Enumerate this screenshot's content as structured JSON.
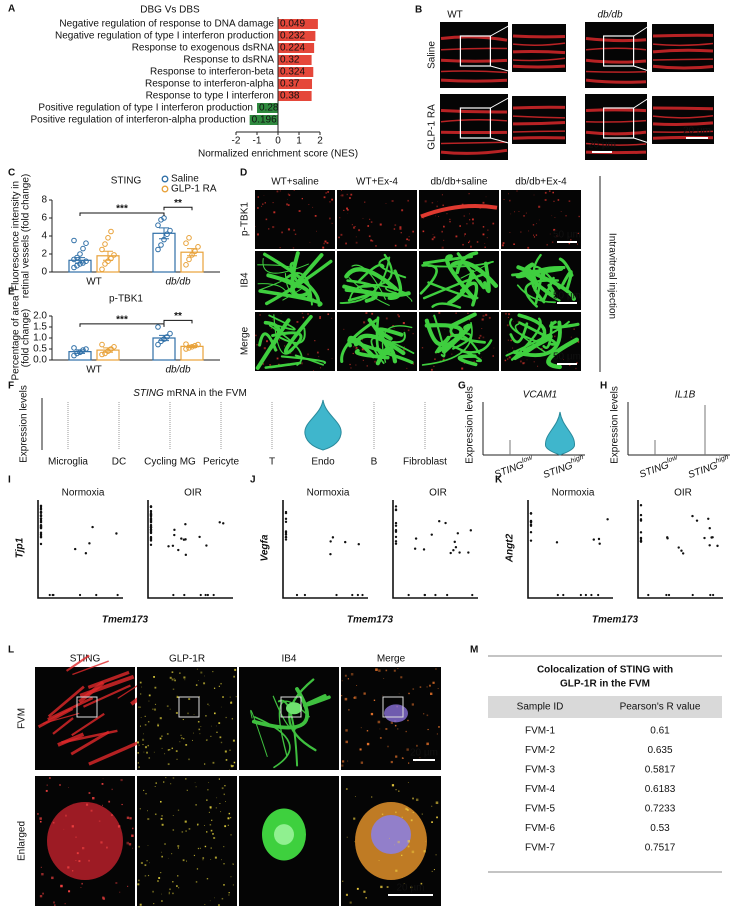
{
  "panel_labels": [
    "A",
    "B",
    "C",
    "D",
    "E",
    "F",
    "G",
    "H",
    "I",
    "J",
    "K",
    "L",
    "M"
  ],
  "chart_data": [
    {
      "type": "hbar",
      "title": "DBG Vs DBS",
      "categories": [
        "Negative regulation of response to DNA damage",
        "Negative regulation of type I interferon production",
        "Response to exogenous dsRNA",
        "Response to dsRNA",
        "Response to interferon-beta",
        "Response to interferon-alpha",
        "Response to type I interferon",
        "Positive regulation of type I interferon production",
        "Positive regulation of interferon-alpha production"
      ],
      "values": [
        1.9,
        1.78,
        1.72,
        1.6,
        1.68,
        1.62,
        1.6,
        -1.0,
        -1.35
      ],
      "annotations": [
        "0.049",
        "0.232",
        "0.224",
        "0.32",
        "0.324",
        "0.37",
        "0.38",
        "0.28",
        "0.196"
      ],
      "positive_color": "#e5473a",
      "negative_color": "#2f8a3f",
      "xlim": [
        -2,
        2
      ],
      "xticks": [
        -2,
        -1,
        0,
        1,
        2
      ],
      "xlabel": "Normalized enrichment score (NES)"
    },
    {
      "type": "bar_scatter",
      "title": "STING",
      "ylabel": [
        "Fluorescence intensity in",
        "retinal vessels (fold change)"
      ],
      "categories": [
        "WT",
        "db/db"
      ],
      "series": [
        {
          "name": "Saline",
          "color": "#2f6fa7",
          "values": [
            1.3,
            4.3
          ],
          "errors": [
            0.3,
            0.6
          ],
          "points": [
            [
              0.5,
              0.7,
              0.9,
              1.0,
              1.2,
              1.4,
              1.6,
              2.0,
              2.6,
              3.2,
              3.5
            ],
            [
              2.5,
              3.0,
              3.6,
              4.2,
              4.6,
              5.2,
              5.8,
              6.0
            ]
          ]
        },
        {
          "name": "GLP-1 RA",
          "color": "#e8a23a",
          "values": [
            1.8,
            2.2
          ],
          "errors": [
            0.5,
            0.4
          ],
          "points": [
            [
              0.3,
              0.9,
              1.2,
              1.5,
              1.9,
              2.5,
              3.1,
              3.8,
              4.5
            ],
            [
              0.8,
              1.4,
              1.9,
              2.3,
              2.8,
              3.2,
              3.8
            ]
          ]
        }
      ],
      "ylim": [
        0,
        8
      ],
      "yticks": [
        0,
        2,
        4,
        6,
        8
      ],
      "legend": true,
      "significance": [
        "***",
        "**"
      ]
    },
    {
      "type": "bar_scatter",
      "title": "p-TBK1",
      "ylabel": [
        "Percentage of area",
        "(fold change)"
      ],
      "categories": [
        "WT",
        "db/db"
      ],
      "series": [
        {
          "name": "Saline",
          "color": "#2f6fa7",
          "values": [
            0.38,
            1.0
          ],
          "errors": [
            0.08,
            0.12
          ],
          "points": [
            [
              0.2,
              0.3,
              0.35,
              0.45,
              0.5,
              0.55
            ],
            [
              0.7,
              0.85,
              0.95,
              1.05,
              1.2,
              1.5
            ]
          ]
        },
        {
          "name": "GLP-1 RA",
          "color": "#e8a23a",
          "values": [
            0.45,
            0.62
          ],
          "errors": [
            0.1,
            0.05
          ],
          "points": [
            [
              0.25,
              0.3,
              0.4,
              0.5,
              0.6,
              0.7
            ],
            [
              0.5,
              0.55,
              0.6,
              0.65,
              0.7,
              0.72
            ]
          ]
        }
      ],
      "ylim": [
        0,
        2
      ],
      "yticks": [
        {
          "value": 0,
          "label": "0.0"
        },
        {
          "value": 0.5,
          "label": "0.5"
        },
        {
          "value": 1,
          "label": "1.0"
        },
        {
          "value": 1.5,
          "label": "1.5"
        },
        {
          "value": 2,
          "label": "2.0"
        }
      ],
      "legend": false,
      "significance": [
        "***",
        "**"
      ]
    }
  ],
  "panel_b": {
    "columns": [
      "WT",
      "db/db"
    ],
    "rows": [
      "Saline",
      "GLP-1 RA"
    ],
    "scale_bars": [
      "20 µm",
      "20 µm"
    ]
  },
  "panel_d": {
    "columns": [
      "WT+saline",
      "WT+Ex-4",
      "db/db+saline",
      "db/db+Ex-4"
    ],
    "rows": [
      "p-TBK1",
      "IB4",
      "Merge"
    ],
    "scale_bars": [
      "50 µm",
      "50 µm",
      "50 µm"
    ],
    "side_label": "Intravitreal injection"
  },
  "panel_f": {
    "title_gene": "STING",
    "title_rest": "mRNA in the FVM",
    "ylabel": "Expression levels",
    "categories": [
      "Microglia",
      "DC",
      "Cycling MG",
      "Pericyte",
      "T",
      "Endo",
      "B",
      "Fibroblast"
    ]
  },
  "panel_g": {
    "gene": "VCAM1",
    "ylabel": "Expression levels",
    "groups": [
      {
        "base": "STING",
        "sup": "low"
      },
      {
        "base": "STING",
        "sup": "high"
      }
    ]
  },
  "panel_h": {
    "gene": "IL1B",
    "ylabel": "Expression levels",
    "groups": [
      {
        "base": "STING",
        "sup": "low"
      },
      {
        "base": "STING",
        "sup": "high"
      }
    ]
  },
  "panel_i": {
    "gene": "Tjp1",
    "xlabel": "Tmem173",
    "conditions": [
      "Normoxia",
      "OIR"
    ]
  },
  "panel_j": {
    "gene": "Vegfa",
    "xlabel": "Tmem173",
    "conditions": [
      "Normoxia",
      "OIR"
    ]
  },
  "panel_k": {
    "gene": "Angt2",
    "xlabel": "Tmem173",
    "conditions": [
      "Normoxia",
      "OIR"
    ]
  },
  "panel_l": {
    "columns": [
      "STING",
      "GLP-1R",
      "IB4",
      "Merge"
    ],
    "rows": [
      "FVM",
      "Enlarged"
    ],
    "scale_bars": [
      "20 µm",
      "20 µm"
    ]
  },
  "panel_m": {
    "title": [
      "Colocalization of STING with",
      "GLP-1R in the FVM"
    ],
    "columns": [
      "Sample ID",
      "Pearson's R value"
    ],
    "rows": [
      [
        "FVM-1",
        "0.61"
      ],
      [
        "FVM-2",
        "0.635"
      ],
      [
        "FVM-3",
        "0.5817"
      ],
      [
        "FVM-4",
        "0.6183"
      ],
      [
        "FVM-5",
        "0.7233"
      ],
      [
        "FVM-6",
        "0.53"
      ],
      [
        "FVM-7",
        "0.7517"
      ]
    ]
  }
}
